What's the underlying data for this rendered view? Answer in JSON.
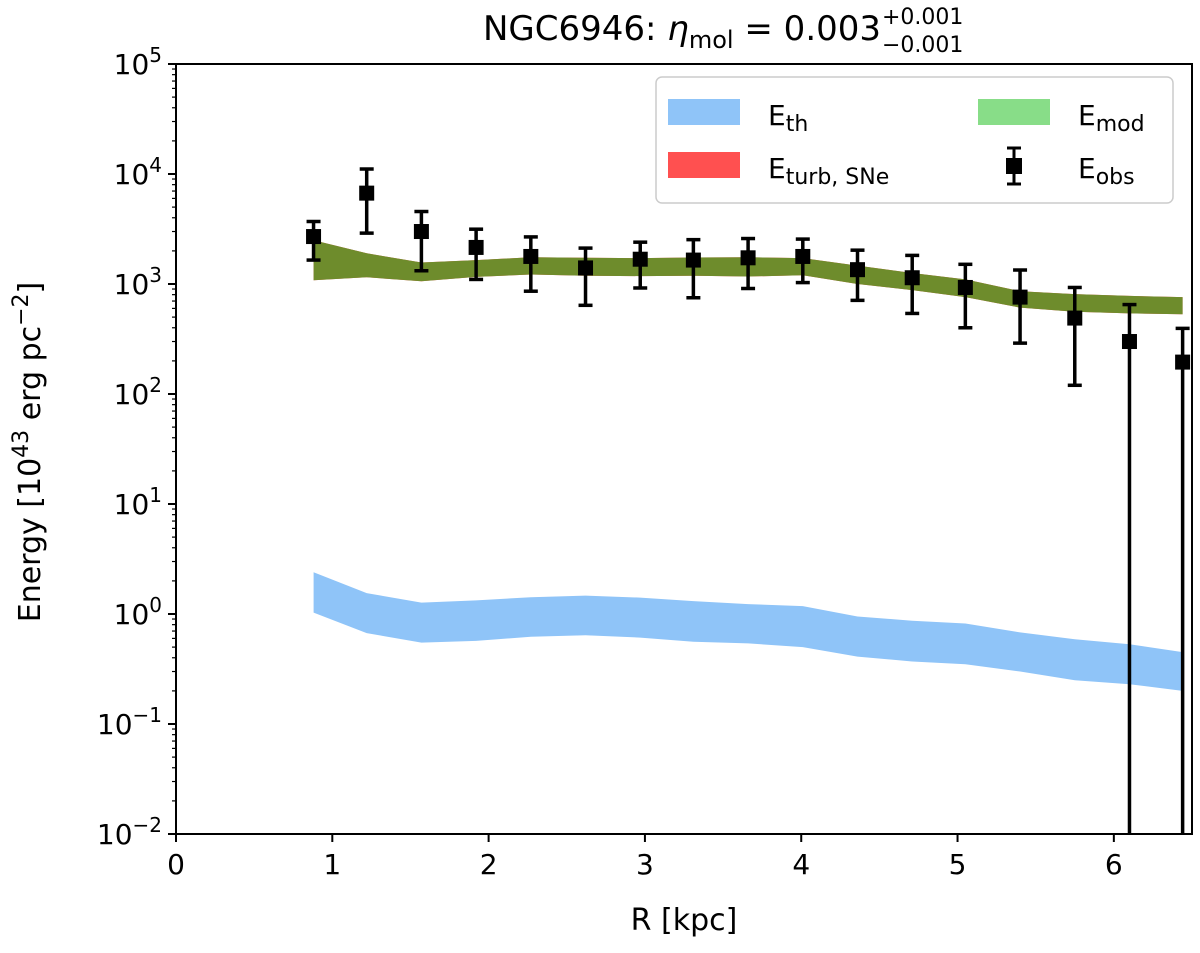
{
  "chart_data": {
    "type": "line",
    "title": {
      "galaxy": "NGC6946: ",
      "symbol": "η",
      "symbol_sub": "mol",
      "equals": " = 0.003",
      "err_plus": "+0.001",
      "err_minus": "−0.001"
    },
    "xlabel": "R [kpc]",
    "ylabel": {
      "prefix": "Energy [10",
      "exp1": "43",
      "middle": " erg pc",
      "exp2": "−2",
      "suffix": "]"
    },
    "xlim": [
      0,
      6.5
    ],
    "ylim": [
      0.01,
      100000
    ],
    "yscale": "log",
    "x_ticks": [
      "0",
      "1",
      "2",
      "3",
      "4",
      "5",
      "6"
    ],
    "y_ticks": [
      {
        "value": 0.01,
        "exp": "−2"
      },
      {
        "value": 0.1,
        "exp": "−1"
      },
      {
        "value": 1,
        "exp": "0"
      },
      {
        "value": 10,
        "exp": "1"
      },
      {
        "value": 100,
        "exp": "2"
      },
      {
        "value": 1000,
        "exp": "3"
      },
      {
        "value": 10000,
        "exp": "4"
      },
      {
        "value": 100000,
        "exp": "5"
      }
    ],
    "y_tick_base": "10",
    "series": [
      {
        "name": "E_th",
        "kind": "band",
        "color": "#8fc4f8",
        "x": [
          0.88,
          1.22,
          1.57,
          1.92,
          2.27,
          2.62,
          2.97,
          3.31,
          3.66,
          4.01,
          4.36,
          4.71,
          5.05,
          5.4,
          5.75,
          6.1,
          6.44
        ],
        "lower": [
          1.03,
          0.67,
          0.55,
          0.57,
          0.62,
          0.64,
          0.61,
          0.56,
          0.54,
          0.5,
          0.41,
          0.37,
          0.35,
          0.3,
          0.25,
          0.23,
          0.2
        ],
        "upper": [
          2.4,
          1.55,
          1.27,
          1.33,
          1.42,
          1.47,
          1.41,
          1.31,
          1.23,
          1.18,
          0.95,
          0.87,
          0.82,
          0.68,
          0.59,
          0.53,
          0.45
        ]
      },
      {
        "name": "E_turb,SNe",
        "kind": "band",
        "color": "#ff5050",
        "x": [
          0.88,
          1.22,
          1.57,
          1.92,
          2.27,
          2.62,
          2.97,
          3.31,
          3.66,
          4.01,
          4.36,
          4.71,
          5.05,
          5.4,
          5.75,
          6.1,
          6.44
        ],
        "lower": [
          1080,
          1150,
          1060,
          1160,
          1220,
          1190,
          1180,
          1190,
          1170,
          1200,
          1000,
          880,
          760,
          610,
          560,
          540,
          530
        ],
        "upper": [
          2500,
          1900,
          1570,
          1650,
          1750,
          1730,
          1720,
          1740,
          1750,
          1720,
          1470,
          1260,
          1100,
          860,
          810,
          780,
          760
        ]
      },
      {
        "name": "E_mod",
        "kind": "band",
        "color": "#6e8c2c",
        "x": [
          0.88,
          1.22,
          1.57,
          1.92,
          2.27,
          2.62,
          2.97,
          3.31,
          3.66,
          4.01,
          4.36,
          4.71,
          5.05,
          5.4,
          5.75,
          6.1,
          6.44
        ],
        "lower": [
          1080,
          1150,
          1060,
          1160,
          1220,
          1190,
          1180,
          1190,
          1170,
          1200,
          1000,
          880,
          760,
          610,
          560,
          540,
          530
        ],
        "upper": [
          2500,
          1900,
          1570,
          1650,
          1750,
          1730,
          1720,
          1740,
          1750,
          1720,
          1470,
          1260,
          1100,
          860,
          810,
          780,
          760
        ]
      },
      {
        "name": "E_obs",
        "kind": "errorbar",
        "color": "#000000",
        "x": [
          0.88,
          1.22,
          1.57,
          1.92,
          2.27,
          2.62,
          2.97,
          3.31,
          3.66,
          4.01,
          4.36,
          4.71,
          5.05,
          5.4,
          5.75,
          6.1,
          6.44
        ],
        "y": [
          2700,
          6700,
          3000,
          2150,
          1780,
          1400,
          1680,
          1650,
          1730,
          1780,
          1350,
          1140,
          930,
          760,
          490,
          300,
          195
        ],
        "err_low": [
          1050,
          3800,
          1680,
          1050,
          920,
          760,
          760,
          900,
          820,
          750,
          640,
          600,
          530,
          470,
          370,
          299.99,
          194.99
        ],
        "err_high": [
          1000,
          4400,
          1560,
          1000,
          900,
          720,
          720,
          880,
          860,
          780,
          680,
          680,
          580,
          580,
          440,
          350,
          200
        ]
      }
    ],
    "legend": {
      "placement": "top-right",
      "entries": [
        {
          "series": "E_th",
          "base": "E",
          "sub": "th"
        },
        {
          "series": "E_mod",
          "base": "E",
          "sub": "mod"
        },
        {
          "series": "E_turb,SNe",
          "base": "E",
          "sub": "turb, SNe",
          "color": "#ff5050"
        },
        {
          "series": "E_obs",
          "base": "E",
          "sub": "obs"
        }
      ]
    }
  }
}
